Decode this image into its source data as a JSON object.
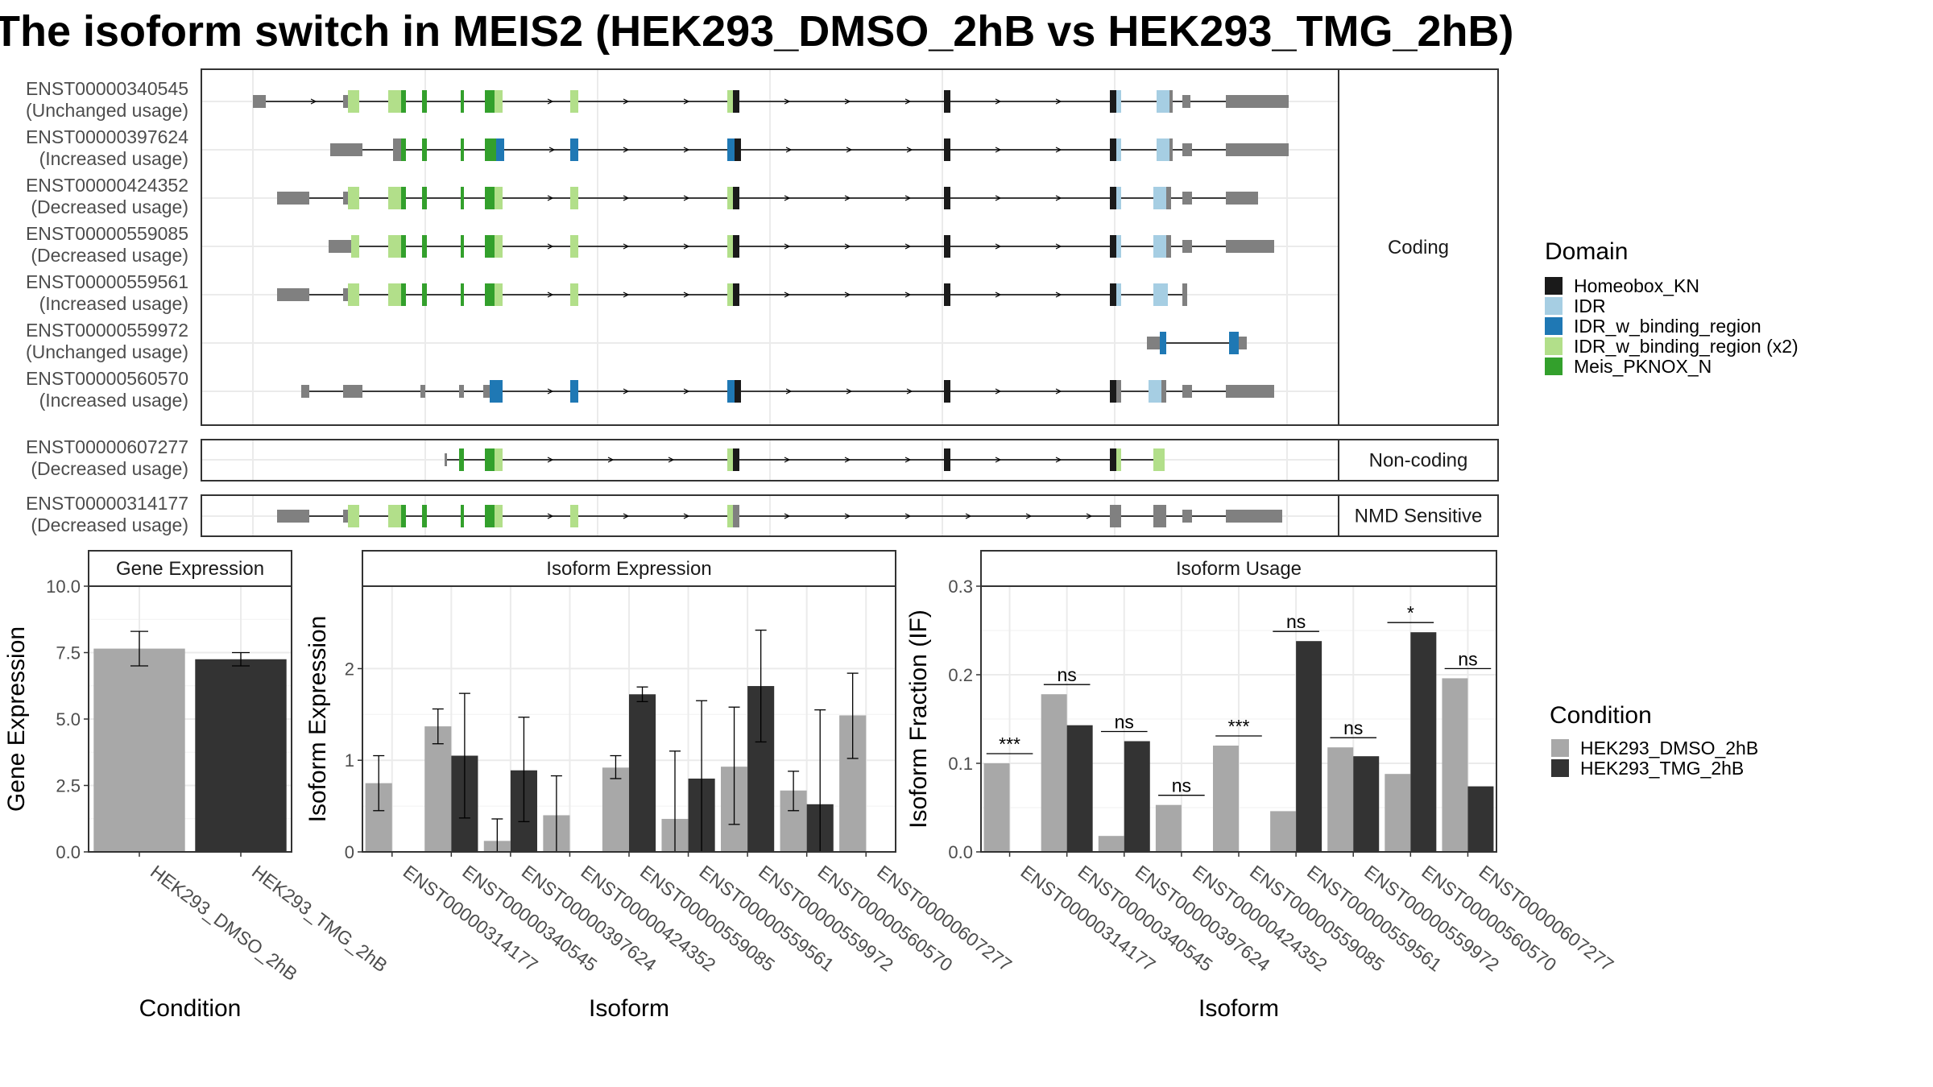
{
  "title": "The isoform switch in MEIS2 (HEK293_DMSO_2hB vs HEK293_TMG_2hB)",
  "colors": {
    "intron": "#000000",
    "utr": "#808080",
    "panel_border": "#333333",
    "grid": "#ebebeb",
    "strip_bg": "#ffffff",
    "condition": {
      "HEK293_DMSO_2hB": "#a8a8a8",
      "HEK293_TMG_2hB": "#333333"
    }
  },
  "chart_data": [
    {
      "type": "gene_structure",
      "facets": [
        {
          "label": "Coding",
          "transcripts": [
            {
              "id": "ENST00000340545",
              "status": "(Unchanged usage)"
            },
            {
              "id": "ENST00000397624",
              "status": "(Increased usage)"
            },
            {
              "id": "ENST00000424352",
              "status": "(Decreased usage)"
            },
            {
              "id": "ENST00000559085",
              "status": "(Decreased usage)"
            },
            {
              "id": "ENST00000559561",
              "status": "(Increased usage)"
            },
            {
              "id": "ENST00000559972",
              "status": "(Unchanged usage)"
            },
            {
              "id": "ENST00000560570",
              "status": "(Increased usage)"
            }
          ]
        },
        {
          "label": "Non-coding",
          "transcripts": [
            {
              "id": "ENST00000607277",
              "status": "(Decreased usage)"
            }
          ]
        },
        {
          "label": "NMD Sensitive",
          "transcripts": [
            {
              "id": "ENST00000314177",
              "status": "(Decreased usage)"
            }
          ]
        }
      ],
      "legend": {
        "title": "Domain",
        "items": [
          {
            "label": "Homeobox_KN",
            "color": "#1a1a1a"
          },
          {
            "label": "IDR",
            "color": "#a6cee3"
          },
          {
            "label": "IDR_w_binding_region",
            "color": "#1f78b4"
          },
          {
            "label": "IDR_w_binding_region (x2)",
            "color": "#b2df8a"
          },
          {
            "label": "Meis_PKNOX_N",
            "color": "#33a02c"
          }
        ]
      }
    },
    {
      "type": "bar",
      "title": "Gene Expression",
      "xlabel": "Condition",
      "ylabel": "Gene Expression",
      "ylim": [
        0,
        10
      ],
      "yticks": [
        "0.0",
        "2.5",
        "5.0",
        "7.5",
        "10.0"
      ],
      "categories": [
        "HEK293_DMSO_2hB",
        "HEK293_TMG_2hB"
      ],
      "values": [
        7.65,
        7.25
      ],
      "errors": [
        [
          7.0,
          8.3
        ],
        [
          7.0,
          7.5
        ]
      ]
    },
    {
      "type": "bar",
      "title": "Isoform Expression",
      "xlabel": "Isoform",
      "ylabel": "Isoform Expression",
      "ylim": [
        0,
        2.9
      ],
      "yticks": [
        "0",
        "1",
        "2"
      ],
      "categories": [
        "ENST00000314177",
        "ENST00000340545",
        "ENST00000397624",
        "ENST00000424352",
        "ENST00000559085",
        "ENST00000559561",
        "ENST00000559972",
        "ENST00000560570",
        "ENST00000607277"
      ],
      "series": [
        {
          "name": "HEK293_DMSO_2hB",
          "values": [
            0.75,
            1.37,
            0.12,
            0.4,
            0.92,
            0.36,
            0.93,
            0.67,
            1.49
          ],
          "errors": [
            [
              0.45,
              1.05
            ],
            [
              1.18,
              1.56
            ],
            [
              0.0,
              0.36
            ],
            [
              0.0,
              0.83
            ],
            [
              0.8,
              1.05
            ],
            [
              0.0,
              1.1
            ],
            [
              0.3,
              1.58
            ],
            [
              0.45,
              0.88
            ],
            [
              1.02,
              1.95
            ]
          ]
        },
        {
          "name": "HEK293_TMG_2hB",
          "values": [
            0.0,
            1.05,
            0.89,
            0.0,
            1.72,
            0.8,
            1.81,
            0.52,
            0.0
          ],
          "errors": [
            [
              0.0,
              0.0
            ],
            [
              0.37,
              1.73
            ],
            [
              0.33,
              1.47
            ],
            [
              0.0,
              0.0
            ],
            [
              1.64,
              1.8
            ],
            [
              0.0,
              1.65
            ],
            [
              1.2,
              2.42
            ],
            [
              0.0,
              1.55
            ],
            [
              0.0,
              0.0
            ]
          ]
        }
      ]
    },
    {
      "type": "bar",
      "title": "Isoform Usage",
      "xlabel": "Isoform",
      "ylabel": "Isoform Fraction (IF)",
      "ylim": [
        0,
        0.3
      ],
      "yticks": [
        "0.0",
        "0.1",
        "0.2",
        "0.3"
      ],
      "categories": [
        "ENST00000314177",
        "ENST00000340545",
        "ENST00000397624",
        "ENST00000424352",
        "ENST00000559085",
        "ENST00000559561",
        "ENST00000559972",
        "ENST00000560570",
        "ENST00000607277"
      ],
      "series": [
        {
          "name": "HEK293_DMSO_2hB",
          "values": [
            0.1,
            0.178,
            0.018,
            0.053,
            0.12,
            0.046,
            0.118,
            0.088,
            0.196
          ]
        },
        {
          "name": "HEK293_TMG_2hB",
          "values": [
            0.0,
            0.143,
            0.125,
            0.0,
            0.0,
            0.238,
            0.108,
            0.248,
            0.074
          ]
        }
      ],
      "significance": [
        "***",
        "ns",
        "ns",
        "ns",
        "***",
        "ns",
        "ns",
        "*",
        "ns"
      ]
    }
  ],
  "condition_legend": {
    "title": "Condition",
    "items": [
      "HEK293_DMSO_2hB",
      "HEK293_TMG_2hB"
    ]
  }
}
